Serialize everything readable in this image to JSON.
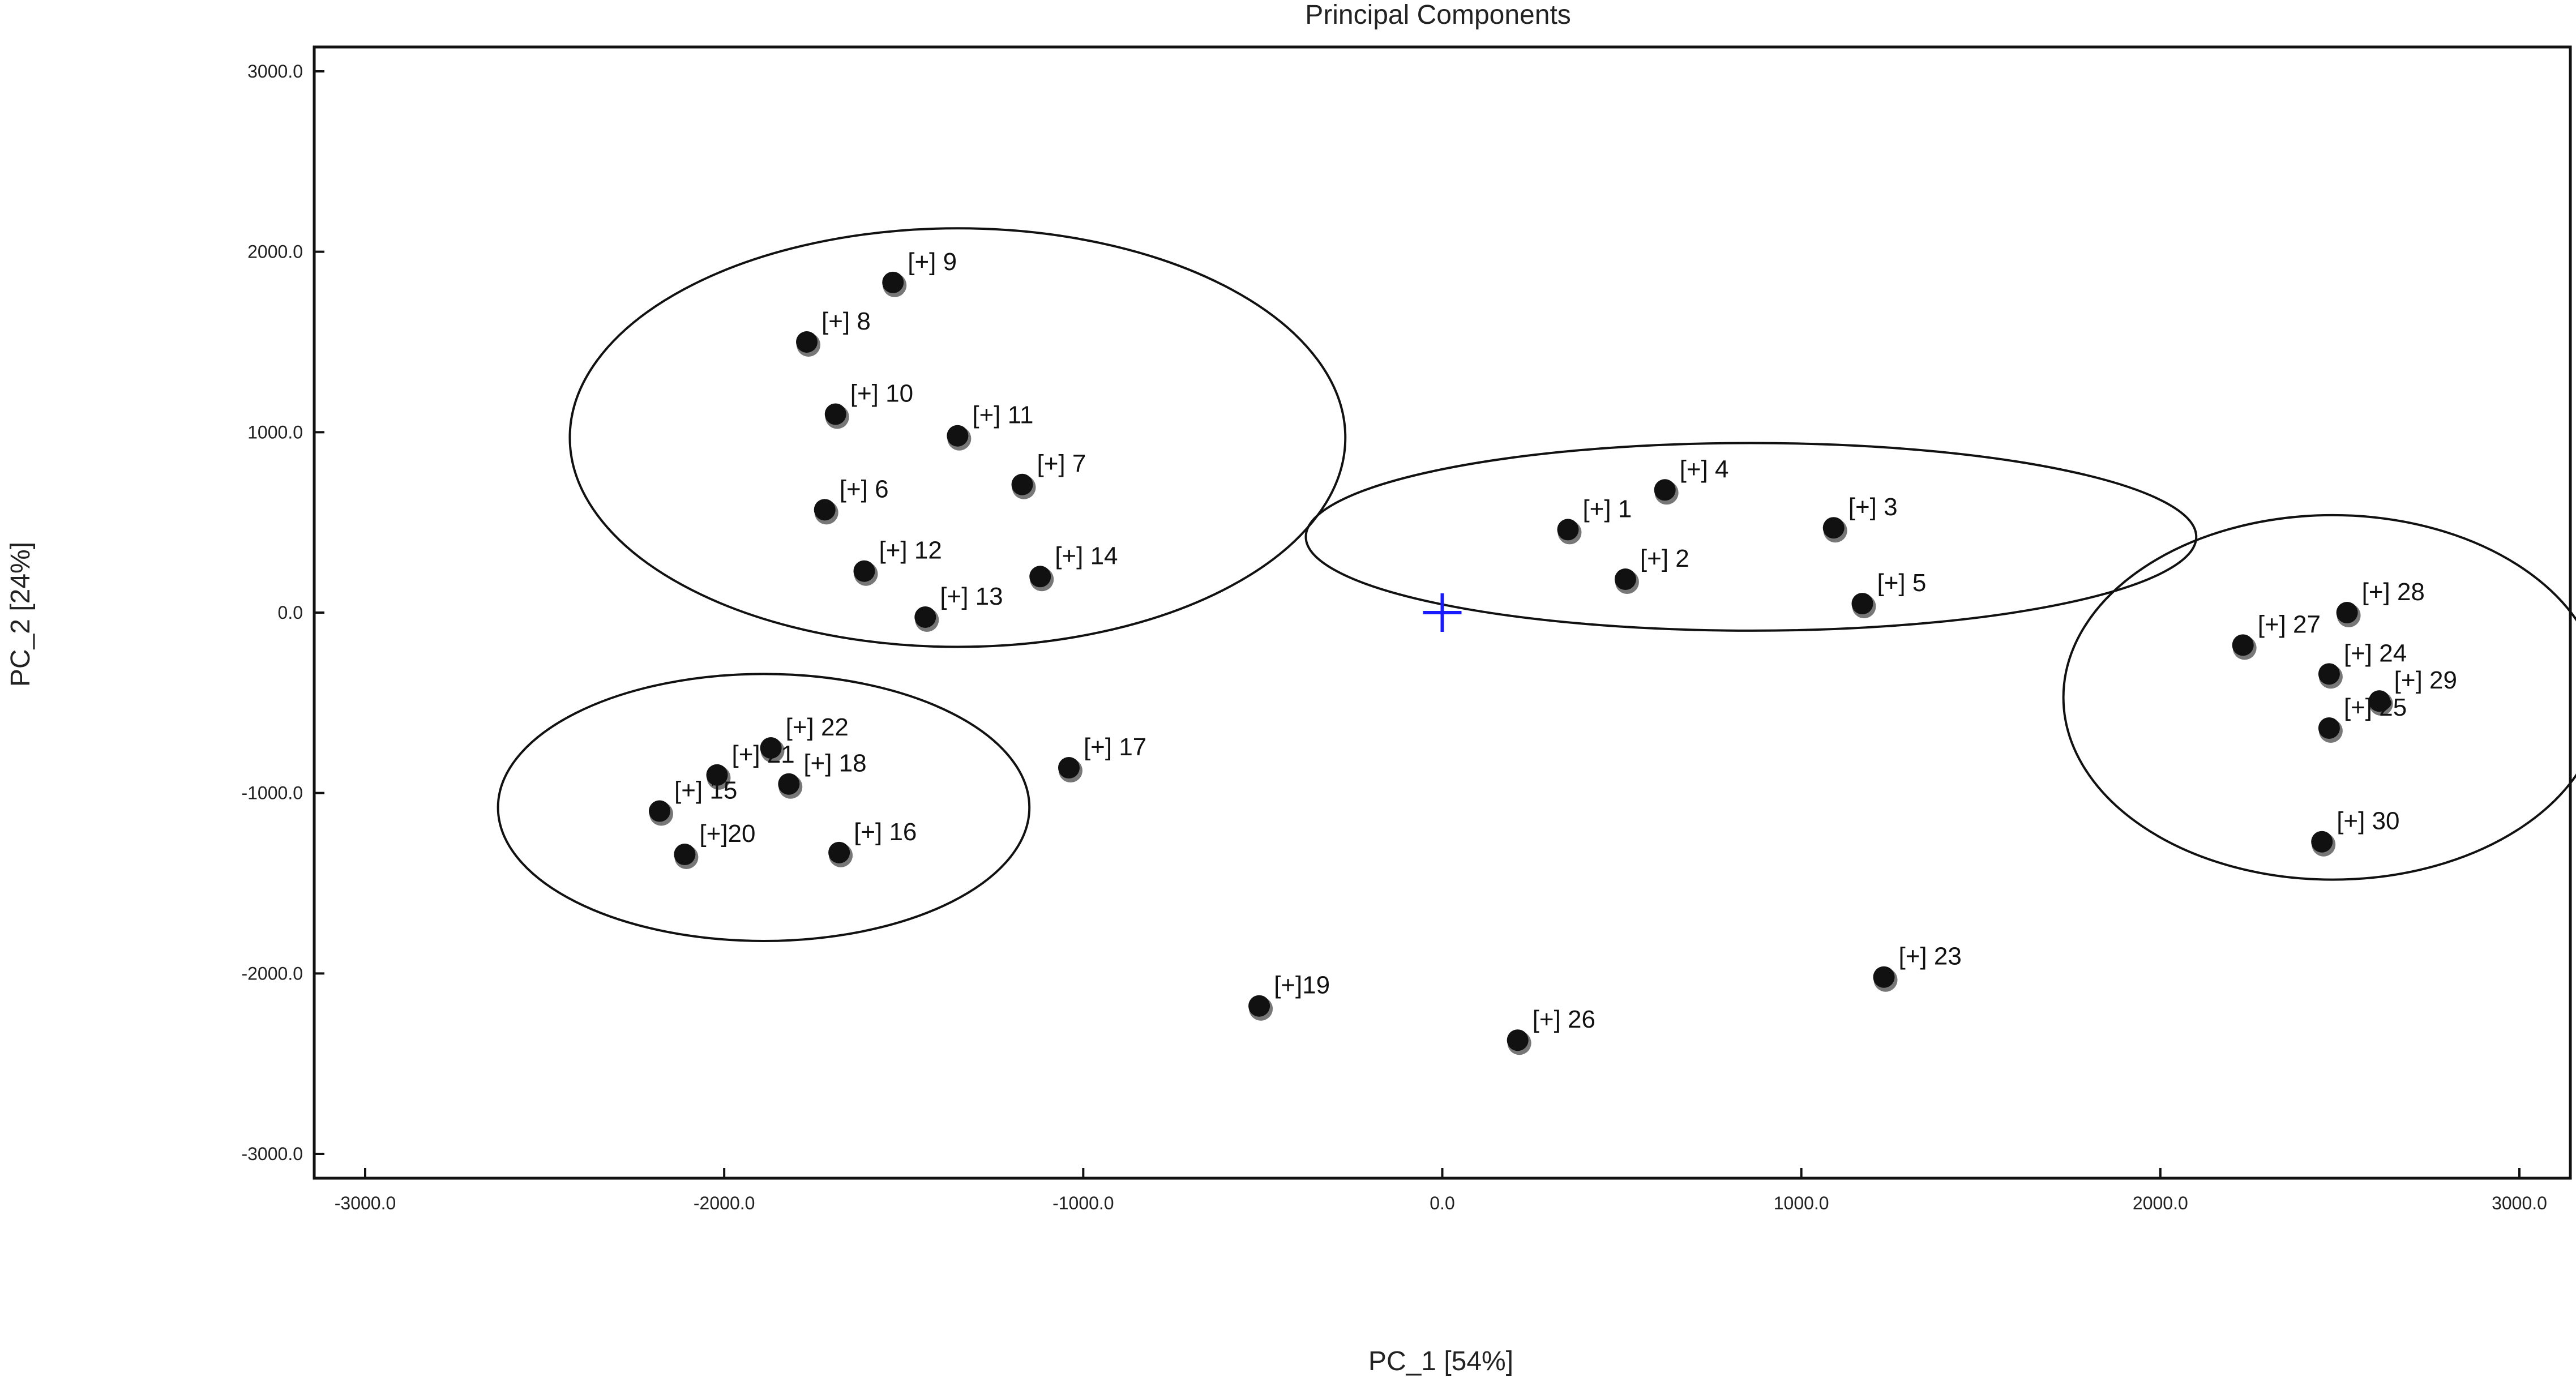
{
  "chart_data": {
    "type": "scatter",
    "title": "Principal Components",
    "xlabel": "PC_1 [54%]",
    "ylabel": "PC_2 [24%]",
    "xlim": [
      -3000,
      3000
    ],
    "ylim": [
      -3000,
      3000
    ],
    "x_ticks": [
      -3000,
      -2000,
      -1000,
      0,
      1000,
      2000,
      3000
    ],
    "y_ticks": [
      -3000,
      -2000,
      -1000,
      0,
      1000,
      2000,
      3000
    ],
    "x_tick_labels": [
      "-3000.0",
      "-2000.0",
      "-1000.0",
      "0.0",
      "1000.0",
      "2000.0",
      "3000.0"
    ],
    "y_tick_labels": [
      "-3000.0",
      "-2000.0",
      "-1000.0",
      "0.0",
      "1000.0",
      "2000.0",
      "3000.0"
    ],
    "grid": false,
    "origin_marker": {
      "x": 0,
      "y": 0,
      "color": "#1a1aff"
    },
    "point_color": "#111111",
    "points": [
      {
        "label": "[+] 1",
        "x": 350,
        "y": 460
      },
      {
        "label": "[+] 2",
        "x": 510,
        "y": 185
      },
      {
        "label": "[+] 3",
        "x": 1090,
        "y": 470
      },
      {
        "label": "[+] 4",
        "x": 620,
        "y": 680
      },
      {
        "label": "[+] 5",
        "x": 1170,
        "y": 50
      },
      {
        "label": "[+] 6",
        "x": -1720,
        "y": 570
      },
      {
        "label": "[+] 7",
        "x": -1170,
        "y": 710
      },
      {
        "label": "[+] 8",
        "x": -1770,
        "y": 1500
      },
      {
        "label": "[+] 9",
        "x": -1530,
        "y": 1830
      },
      {
        "label": "[+] 10",
        "x": -1690,
        "y": 1100
      },
      {
        "label": "[+] 11",
        "x": -1350,
        "y": 980
      },
      {
        "label": "[+] 12",
        "x": -1610,
        "y": 230
      },
      {
        "label": "[+] 13",
        "x": -1440,
        "y": -25
      },
      {
        "label": "[+] 14",
        "x": -1120,
        "y": 200
      },
      {
        "label": "[+] 15",
        "x": -2180,
        "y": -1100
      },
      {
        "label": "[+] 16",
        "x": -1680,
        "y": -1330
      },
      {
        "label": "[+] 17",
        "x": -1040,
        "y": -860
      },
      {
        "label": "[+] 18",
        "x": -1820,
        "y": -950
      },
      {
        "label": "[+]19",
        "x": -510,
        "y": -2180
      },
      {
        "label": "[+]20",
        "x": -2110,
        "y": -1340
      },
      {
        "label": "[+] 21",
        "x": -2020,
        "y": -900
      },
      {
        "label": "[+] 22",
        "x": -1870,
        "y": -750
      },
      {
        "label": "[+] 23",
        "x": 1230,
        "y": -2020
      },
      {
        "label": "[+] 24",
        "x": 2470,
        "y": -340
      },
      {
        "label": "[+] 25",
        "x": 2470,
        "y": -640
      },
      {
        "label": "[+] 26",
        "x": 210,
        "y": -2370
      },
      {
        "label": "[+] 27",
        "x": 2230,
        "y": -180
      },
      {
        "label": "[+] 28",
        "x": 2520,
        "y": 0
      },
      {
        "label": "[+] 29",
        "x": 2610,
        "y": -490
      },
      {
        "label": "[+] 30",
        "x": 2450,
        "y": -1270
      }
    ],
    "group_ellipses": [
      {
        "cx": -1350,
        "cy": 970,
        "rx": 1080,
        "ry": 1160
      },
      {
        "cx": 860,
        "cy": 420,
        "rx": 1240,
        "ry": 520
      },
      {
        "cx": -1890,
        "cy": -1080,
        "rx": 740,
        "ry": 740
      },
      {
        "cx": 2480,
        "cy": -470,
        "rx": 750,
        "ry": 1010
      }
    ]
  }
}
